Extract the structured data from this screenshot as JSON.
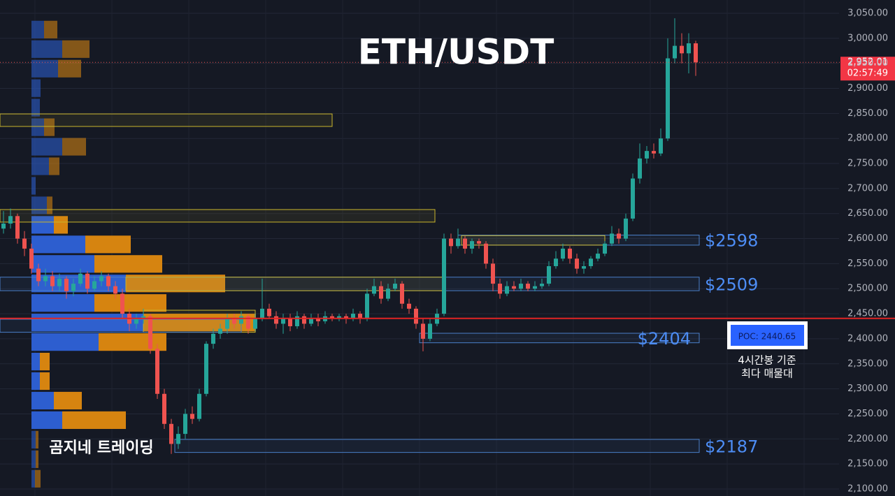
{
  "chart_data": {
    "type": "candlestick",
    "title": "ETH/USDT",
    "ylim": [
      2086,
      3076.5
    ],
    "yticks": [
      {
        "value": 2100,
        "label": "2,100.00"
      },
      {
        "value": 2150,
        "label": "2,150.00"
      },
      {
        "value": 2200,
        "label": "2,200.00"
      },
      {
        "value": 2250,
        "label": "2,250.00"
      },
      {
        "value": 2300,
        "label": "2,300.00"
      },
      {
        "value": 2350,
        "label": "2,350.00"
      },
      {
        "value": 2400,
        "label": "2,400.00"
      },
      {
        "value": 2450,
        "label": "2,450.00"
      },
      {
        "value": 2500,
        "label": "2,500.00"
      },
      {
        "value": 2550,
        "label": "2,550.00"
      },
      {
        "value": 2600,
        "label": "2,600.00"
      },
      {
        "value": 2650,
        "label": "2,650.00"
      },
      {
        "value": 2700,
        "label": "2,700.00"
      },
      {
        "value": 2750,
        "label": "2,750.00"
      },
      {
        "value": 2800,
        "label": "2,800.00"
      },
      {
        "value": 2850,
        "label": "2,850.00"
      },
      {
        "value": 2900,
        "label": "2,900.00"
      },
      {
        "value": 2950,
        "label": "2,950.00"
      },
      {
        "value": 3000,
        "label": "3,000.00"
      },
      {
        "value": 3050,
        "label": "3,050.00"
      }
    ],
    "grid": true,
    "up_color": "#26a69a",
    "down_color": "#ef5350",
    "candles": [
      [
        2620,
        2655,
        2610,
        2630
      ],
      [
        2630,
        2660,
        2620,
        2645
      ],
      [
        2645,
        2650,
        2590,
        2600
      ],
      [
        2600,
        2615,
        2565,
        2580
      ],
      [
        2580,
        2590,
        2530,
        2540
      ],
      [
        2540,
        2550,
        2505,
        2515
      ],
      [
        2515,
        2540,
        2505,
        2525
      ],
      [
        2525,
        2535,
        2495,
        2505
      ],
      [
        2505,
        2530,
        2495,
        2520
      ],
      [
        2520,
        2525,
        2480,
        2495
      ],
      [
        2495,
        2520,
        2485,
        2510
      ],
      [
        2510,
        2540,
        2505,
        2530
      ],
      [
        2530,
        2535,
        2490,
        2500
      ],
      [
        2500,
        2525,
        2495,
        2515
      ],
      [
        2515,
        2535,
        2505,
        2525
      ],
      [
        2525,
        2530,
        2495,
        2505
      ],
      [
        2505,
        2515,
        2480,
        2490
      ],
      [
        2490,
        2500,
        2440,
        2450
      ],
      [
        2450,
        2460,
        2415,
        2430
      ],
      [
        2430,
        2450,
        2420,
        2440
      ],
      [
        2440,
        2460,
        2430,
        2445
      ],
      [
        2445,
        2450,
        2370,
        2380
      ],
      [
        2380,
        2390,
        2280,
        2290
      ],
      [
        2290,
        2300,
        2220,
        2230
      ],
      [
        2230,
        2240,
        2170,
        2190
      ],
      [
        2190,
        2225,
        2180,
        2210
      ],
      [
        2210,
        2260,
        2200,
        2250
      ],
      [
        2250,
        2265,
        2230,
        2240
      ],
      [
        2240,
        2300,
        2235,
        2290
      ],
      [
        2290,
        2395,
        2285,
        2390
      ],
      [
        2390,
        2420,
        2380,
        2410
      ],
      [
        2410,
        2430,
        2400,
        2420
      ],
      [
        2420,
        2450,
        2410,
        2440
      ],
      [
        2440,
        2450,
        2420,
        2430
      ],
      [
        2430,
        2455,
        2425,
        2445
      ],
      [
        2445,
        2450,
        2410,
        2420
      ],
      [
        2420,
        2450,
        2415,
        2440
      ],
      [
        2440,
        2520,
        2435,
        2460
      ],
      [
        2460,
        2470,
        2440,
        2445
      ],
      [
        2445,
        2455,
        2420,
        2430
      ],
      [
        2430,
        2450,
        2410,
        2440
      ],
      [
        2440,
        2450,
        2415,
        2425
      ],
      [
        2425,
        2455,
        2420,
        2445
      ],
      [
        2445,
        2450,
        2420,
        2430
      ],
      [
        2430,
        2450,
        2425,
        2440
      ],
      [
        2440,
        2450,
        2425,
        2435
      ],
      [
        2435,
        2455,
        2430,
        2445
      ],
      [
        2445,
        2450,
        2435,
        2440
      ],
      [
        2440,
        2450,
        2435,
        2445
      ],
      [
        2445,
        2450,
        2430,
        2440
      ],
      [
        2440,
        2460,
        2435,
        2450
      ],
      [
        2450,
        2455,
        2430,
        2440
      ],
      [
        2440,
        2500,
        2435,
        2490
      ],
      [
        2490,
        2520,
        2485,
        2505
      ],
      [
        2505,
        2515,
        2470,
        2480
      ],
      [
        2480,
        2510,
        2475,
        2500
      ],
      [
        2500,
        2520,
        2495,
        2510
      ],
      [
        2510,
        2515,
        2460,
        2470
      ],
      [
        2470,
        2480,
        2450,
        2460
      ],
      [
        2460,
        2465,
        2420,
        2430
      ],
      [
        2430,
        2440,
        2375,
        2400
      ],
      [
        2400,
        2440,
        2395,
        2430
      ],
      [
        2430,
        2460,
        2425,
        2450
      ],
      [
        2450,
        2610,
        2445,
        2600
      ],
      [
        2600,
        2610,
        2570,
        2585
      ],
      [
        2585,
        2620,
        2580,
        2600
      ],
      [
        2600,
        2605,
        2570,
        2580
      ],
      [
        2580,
        2600,
        2570,
        2595
      ],
      [
        2595,
        2600,
        2580,
        2590
      ],
      [
        2590,
        2595,
        2540,
        2550
      ],
      [
        2550,
        2560,
        2495,
        2510
      ],
      [
        2510,
        2520,
        2480,
        2490
      ],
      [
        2490,
        2515,
        2485,
        2505
      ],
      [
        2505,
        2515,
        2495,
        2500
      ],
      [
        2500,
        2520,
        2495,
        2510
      ],
      [
        2510,
        2515,
        2495,
        2500
      ],
      [
        2500,
        2515,
        2495,
        2505
      ],
      [
        2505,
        2520,
        2500,
        2510
      ],
      [
        2510,
        2555,
        2505,
        2545
      ],
      [
        2545,
        2575,
        2540,
        2560
      ],
      [
        2560,
        2590,
        2555,
        2580
      ],
      [
        2580,
        2585,
        2550,
        2560
      ],
      [
        2560,
        2570,
        2530,
        2540
      ],
      [
        2540,
        2555,
        2530,
        2545
      ],
      [
        2545,
        2565,
        2540,
        2560
      ],
      [
        2560,
        2580,
        2555,
        2570
      ],
      [
        2570,
        2595,
        2565,
        2590
      ],
      [
        2590,
        2625,
        2585,
        2610
      ],
      [
        2610,
        2620,
        2590,
        2600
      ],
      [
        2600,
        2650,
        2595,
        2640
      ],
      [
        2640,
        2730,
        2635,
        2720
      ],
      [
        2720,
        2790,
        2710,
        2760
      ],
      [
        2760,
        2785,
        2750,
        2775
      ],
      [
        2775,
        2790,
        2760,
        2770
      ],
      [
        2770,
        2820,
        2765,
        2800
      ],
      [
        2800,
        3000,
        2795,
        2960
      ],
      [
        2960,
        3040,
        2950,
        2985
      ],
      [
        2985,
        3010,
        2950,
        2970
      ],
      [
        2970,
        3010,
        2930,
        2990
      ],
      [
        2990,
        2995,
        2925,
        2952.01
      ]
    ],
    "last_price": {
      "value": 2952.01,
      "label": "2,952.01"
    },
    "countdown": "02:57:49",
    "poc": {
      "value": 2440.65,
      "label": "POC: 2440.65",
      "color": "#e02424",
      "note": [
        "4시간봉 기준",
        "최다 매물대"
      ]
    },
    "watermark": "곰지네 트레이딩",
    "volume_profile": {
      "top": 3035,
      "row_height": 39,
      "up_color": "#2e62d9",
      "down_color": "#e08a10",
      "up": [
        18,
        44,
        38,
        13,
        12,
        18,
        44,
        25,
        6,
        22,
        32,
        77,
        90,
        135,
        90,
        160,
        96,
        12,
        12,
        32,
        44,
        6,
        6,
        5
      ],
      "down": [
        19,
        39,
        33,
        0,
        0,
        15,
        34,
        15,
        0,
        8,
        20,
        65,
        97,
        142,
        103,
        161,
        97,
        14,
        14,
        40,
        91,
        4,
        4,
        8
      ]
    },
    "zones": [
      {
        "x": [
          -0.5,
          47
        ],
        "y": [
          2824,
          2849
        ],
        "color": "#c9b52c"
      },
      {
        "x": [
          -0.5,
          61.7
        ],
        "y": [
          2633,
          2658
        ],
        "color": "#c9b52c"
      },
      {
        "x": [
          65,
          99.5
        ],
        "y": [
          2587,
          2607
        ],
        "color": "#4a7fc9",
        "label": "$2598"
      },
      {
        "x": [
          65.5,
          86
        ],
        "y": [
          2587,
          2606
        ],
        "color": "#c9b52c"
      },
      {
        "x": [
          -0.5,
          99.5
        ],
        "y": [
          2496,
          2523
        ],
        "color": "#4a7fc9",
        "label": "$2509"
      },
      {
        "x": [
          17.5,
          63
        ],
        "y": [
          2496,
          2523
        ],
        "color": "#c9b52c"
      },
      {
        "x": [
          59.5,
          99.5
        ],
        "y": [
          2392,
          2411
        ],
        "color": "#4a7fc9",
        "label": "$2404"
      },
      {
        "x": [
          20,
          36
        ],
        "y": [
          2413,
          2457
        ],
        "color": "#c9b52c"
      },
      {
        "x": [
          -0.5,
          34
        ],
        "y": [
          2413,
          2439
        ],
        "color": "#4a7fc9"
      },
      {
        "x": [
          24.5,
          99.5
        ],
        "y": [
          2173,
          2199
        ],
        "color": "#4a7fc9",
        "label": "$2187"
      }
    ]
  }
}
